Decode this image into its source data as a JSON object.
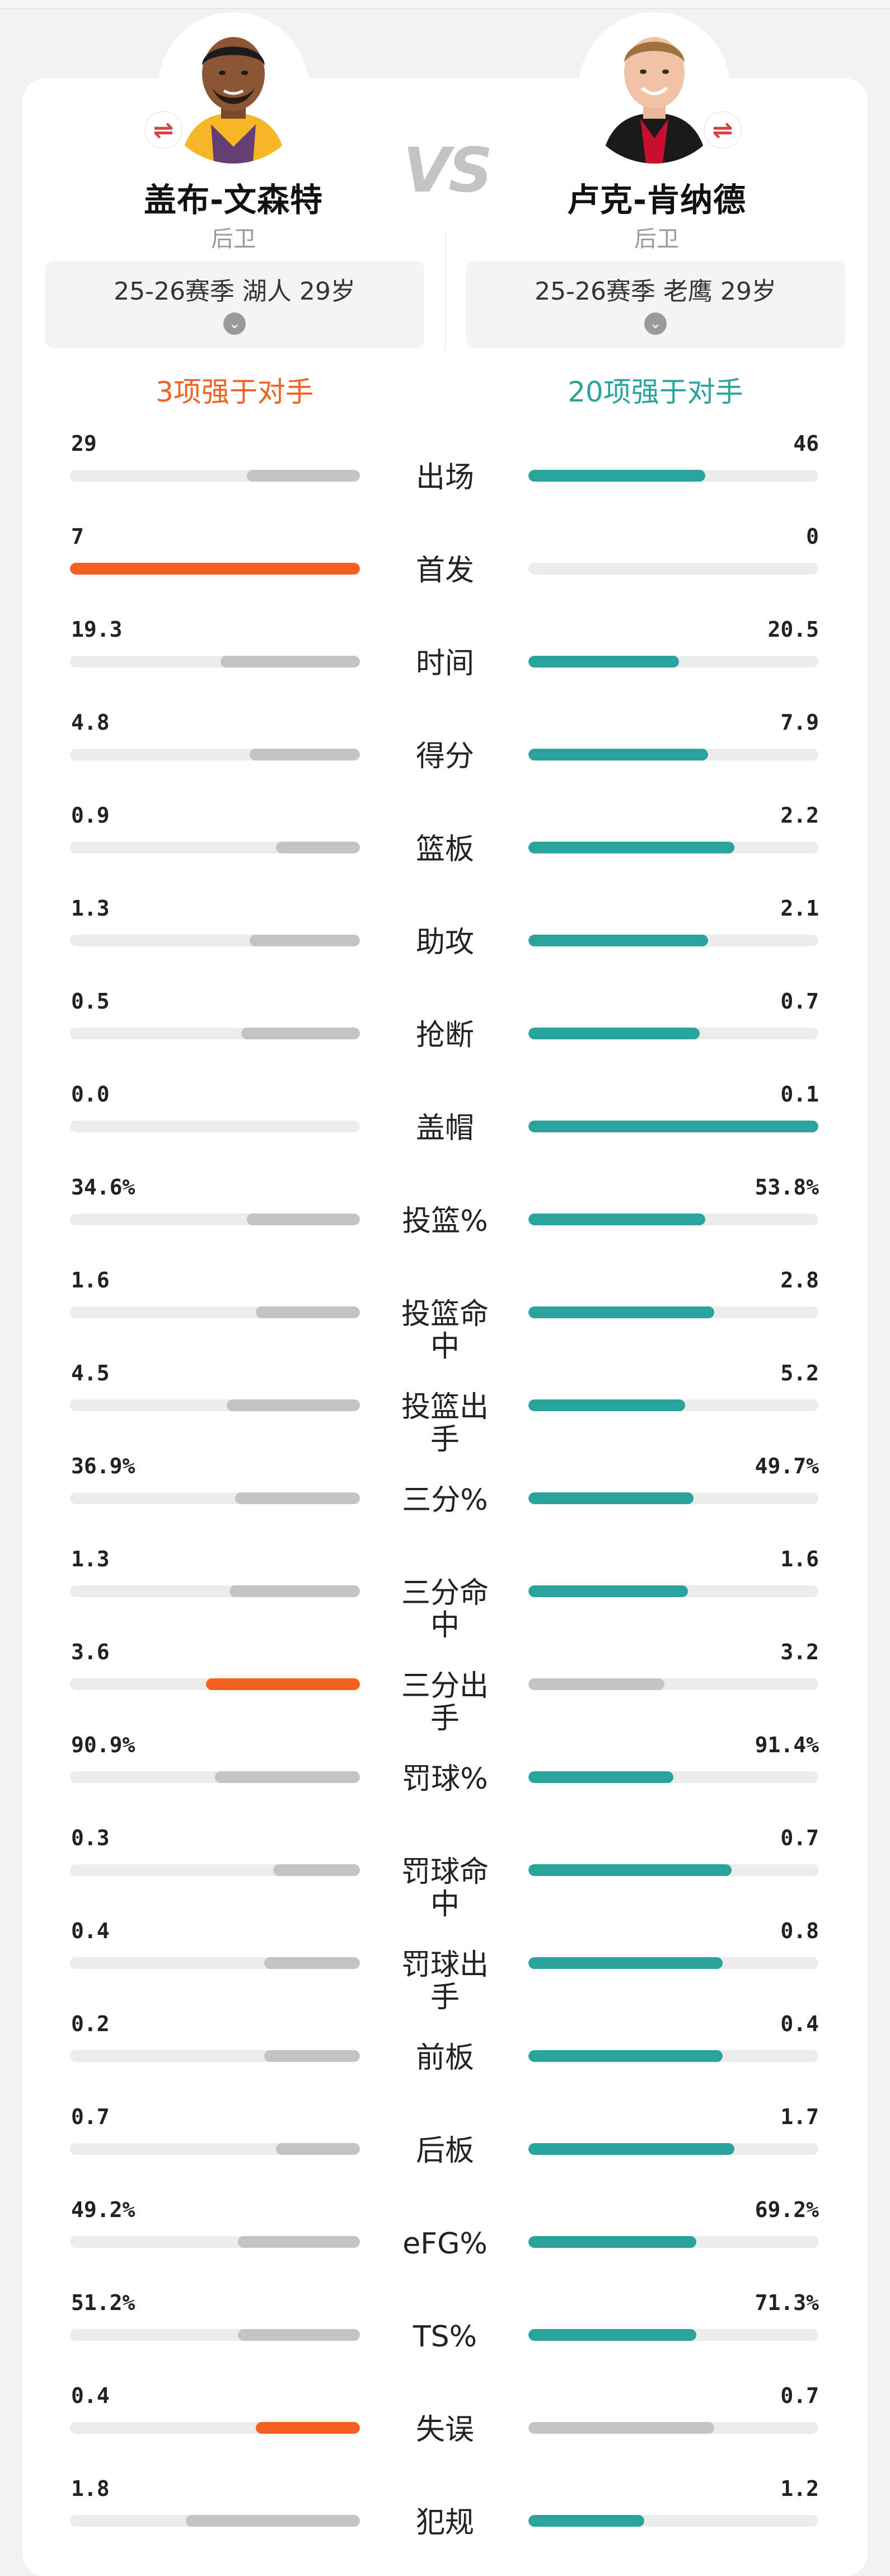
{
  "players": {
    "left": {
      "name": "盖布-文森特",
      "position": "后卫",
      "season": "25-26赛季 湖人 29岁",
      "summary": "3项强于对手",
      "swap_icon": "⇌",
      "team_color": "#f5b726",
      "jersey_color": "#4b2a80"
    },
    "right": {
      "name": "卢克-肯纳德",
      "position": "后卫",
      "season": "25-26赛季 老鹰 29岁",
      "summary": "20项强于对手",
      "swap_icon": "⇌",
      "team_color": "#c8102e",
      "jersey_color": "#1a1a1a"
    }
  },
  "vs_text": "VS",
  "colors": {
    "win": "#f3601f",
    "win_right": "#2aa39c",
    "lose": "#c3c3c3",
    "track": "#ececec"
  },
  "stats": [
    {
      "label": "出场",
      "left": "29",
      "right": "46",
      "left_pct": 0.39,
      "right_pct": 0.61,
      "winner": "right"
    },
    {
      "label": "首发",
      "left": "7",
      "right": "0",
      "left_pct": 1.0,
      "right_pct": 0.0,
      "winner": "left"
    },
    {
      "label": "时间",
      "left": "19.3",
      "right": "20.5",
      "left_pct": 0.48,
      "right_pct": 0.52,
      "winner": "right"
    },
    {
      "label": "得分",
      "left": "4.8",
      "right": "7.9",
      "left_pct": 0.38,
      "right_pct": 0.62,
      "winner": "right"
    },
    {
      "label": "篮板",
      "left": "0.9",
      "right": "2.2",
      "left_pct": 0.29,
      "right_pct": 0.71,
      "winner": "right"
    },
    {
      "label": "助攻",
      "left": "1.3",
      "right": "2.1",
      "left_pct": 0.38,
      "right_pct": 0.62,
      "winner": "right"
    },
    {
      "label": "抢断",
      "left": "0.5",
      "right": "0.7",
      "left_pct": 0.41,
      "right_pct": 0.59,
      "winner": "right"
    },
    {
      "label": "盖帽",
      "left": "0.0",
      "right": "0.1",
      "left_pct": 0.0,
      "right_pct": 1.0,
      "winner": "right"
    },
    {
      "label": "投篮%",
      "left": "34.6%",
      "right": "53.8%",
      "left_pct": 0.39,
      "right_pct": 0.61,
      "winner": "right"
    },
    {
      "label": "投篮命中",
      "left": "1.6",
      "right": "2.8",
      "left_pct": 0.36,
      "right_pct": 0.64,
      "winner": "right"
    },
    {
      "label": "投篮出手",
      "left": "4.5",
      "right": "5.2",
      "left_pct": 0.46,
      "right_pct": 0.54,
      "winner": "right"
    },
    {
      "label": "三分%",
      "left": "36.9%",
      "right": "49.7%",
      "left_pct": 0.43,
      "right_pct": 0.57,
      "winner": "right"
    },
    {
      "label": "三分命中",
      "left": "1.3",
      "right": "1.6",
      "left_pct": 0.45,
      "right_pct": 0.55,
      "winner": "right"
    },
    {
      "label": "三分出手",
      "left": "3.6",
      "right": "3.2",
      "left_pct": 0.53,
      "right_pct": 0.47,
      "winner": "left"
    },
    {
      "label": "罚球%",
      "left": "90.9%",
      "right": "91.4%",
      "left_pct": 0.5,
      "right_pct": 0.5,
      "winner": "right"
    },
    {
      "label": "罚球命中",
      "left": "0.3",
      "right": "0.7",
      "left_pct": 0.3,
      "right_pct": 0.7,
      "winner": "right"
    },
    {
      "label": "罚球出手",
      "left": "0.4",
      "right": "0.8",
      "left_pct": 0.33,
      "right_pct": 0.67,
      "winner": "right"
    },
    {
      "label": "前板",
      "left": "0.2",
      "right": "0.4",
      "left_pct": 0.33,
      "right_pct": 0.67,
      "winner": "right"
    },
    {
      "label": "后板",
      "left": "0.7",
      "right": "1.7",
      "left_pct": 0.29,
      "right_pct": 0.71,
      "winner": "right"
    },
    {
      "label": "eFG%",
      "left": "49.2%",
      "right": "69.2%",
      "left_pct": 0.42,
      "right_pct": 0.58,
      "winner": "right"
    },
    {
      "label": "TS%",
      "left": "51.2%",
      "right": "71.3%",
      "left_pct": 0.42,
      "right_pct": 0.58,
      "winner": "right"
    },
    {
      "label": "失误",
      "left": "0.4",
      "right": "0.7",
      "left_pct": 0.36,
      "right_pct": 0.64,
      "winner": "left"
    },
    {
      "label": "犯规",
      "left": "1.8",
      "right": "1.2",
      "left_pct": 0.6,
      "right_pct": 0.4,
      "winner": "right"
    }
  ]
}
